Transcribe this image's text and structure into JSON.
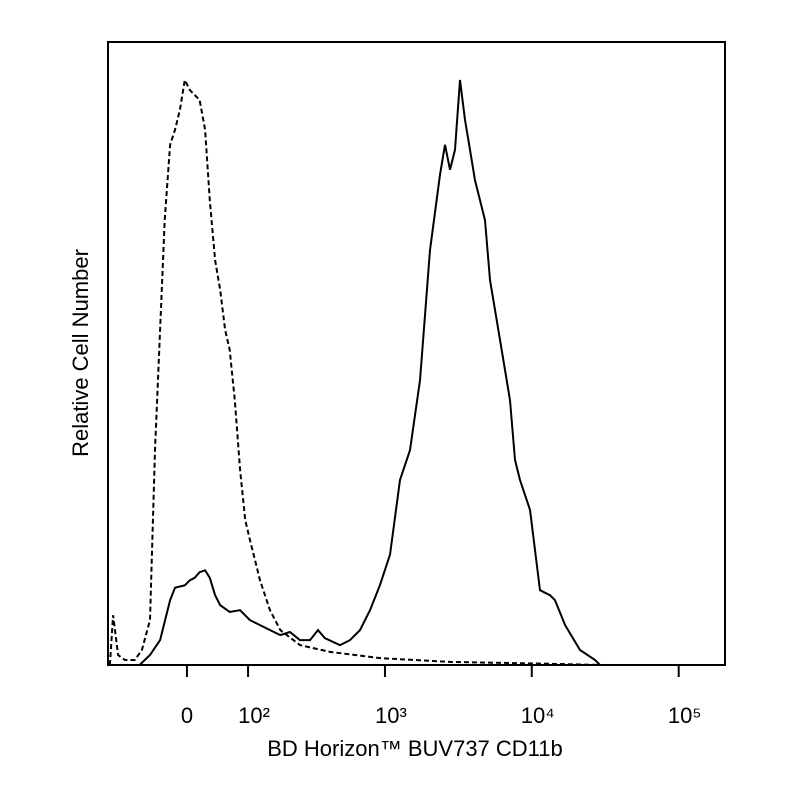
{
  "chart_data": {
    "type": "line",
    "x_label": "BD Horizon™ BUV737 CD11b",
    "y_label": "Relative Cell Number",
    "xscale": "asinh",
    "xscale_linear_width": 90,
    "xlim": [
      -142,
      206600
    ],
    "ylim": [
      0,
      100
    ],
    "xticks": [
      0,
      {
        "value": 100,
        "label": "10²"
      },
      {
        "value": 1000,
        "label": "10³"
      },
      {
        "value": 10000,
        "label": "10⁴"
      },
      {
        "value": 100000,
        "label": "10⁵"
      }
    ],
    "series": [
      {
        "color": "#000000",
        "line_style": "dashed",
        "x": [
          -137,
          -129,
          -117,
          -102,
          -82,
          -69,
          -55,
          -47,
          -39,
          -32,
          -24,
          -17,
          -10,
          -3,
          4,
          11,
          18,
          26,
          33,
          41,
          49,
          57,
          65,
          74,
          84,
          94,
          104,
          115,
          127,
          153,
          184,
          257,
          419,
          924,
          2775,
          13310,
          29150
        ],
        "values": [
          0,
          8.0,
          1.6,
          0.8,
          0.8,
          2.4,
          7.2,
          34.5,
          53.8,
          71.4,
          83.5,
          85.9,
          89.1,
          93.9,
          92.3,
          91.5,
          90.7,
          85.9,
          74.6,
          65.0,
          60.2,
          53.8,
          50.6,
          42.5,
          31.3,
          23.3,
          20.1,
          16.9,
          13.6,
          8.8,
          5.6,
          3.2,
          2.1,
          1.1,
          0.5,
          0.2,
          0
        ]
      },
      {
        "color": "#000000",
        "line_style": "solid",
        "x": [
          -73,
          -55,
          -39,
          -24,
          -17,
          -3,
          4,
          11,
          18,
          26,
          33,
          41,
          49,
          65,
          84,
          104,
          127,
          184,
          217,
          257,
          303,
          345,
          386,
          491,
          576,
          675,
          790,
          924,
          1083,
          1267,
          1482,
          1734,
          2027,
          2373,
          2568,
          2775,
          3004,
          3249,
          3513,
          3800,
          4107,
          4805,
          5195,
          6080,
          7110,
          7690,
          8320,
          9730,
          11380,
          13310,
          14400,
          16850,
          21300,
          26960,
          29150
        ],
        "values": [
          0,
          1.6,
          4.0,
          10.4,
          12.4,
          12.8,
          13.6,
          14.0,
          14.9,
          15.2,
          14.0,
          11.2,
          9.6,
          8.5,
          8.8,
          7.2,
          6.4,
          4.8,
          5.3,
          4.0,
          4.0,
          5.6,
          4.3,
          3.2,
          4.0,
          5.6,
          8.8,
          12.8,
          17.7,
          29.7,
          34.5,
          45.7,
          66.6,
          78.7,
          83.5,
          79.5,
          82.7,
          93.9,
          87.5,
          82.7,
          77.8,
          71.4,
          61.8,
          52.2,
          42.5,
          32.9,
          29.7,
          24.9,
          12.0,
          11.2,
          10.4,
          6.4,
          2.4,
          0.8,
          0
        ]
      }
    ]
  }
}
